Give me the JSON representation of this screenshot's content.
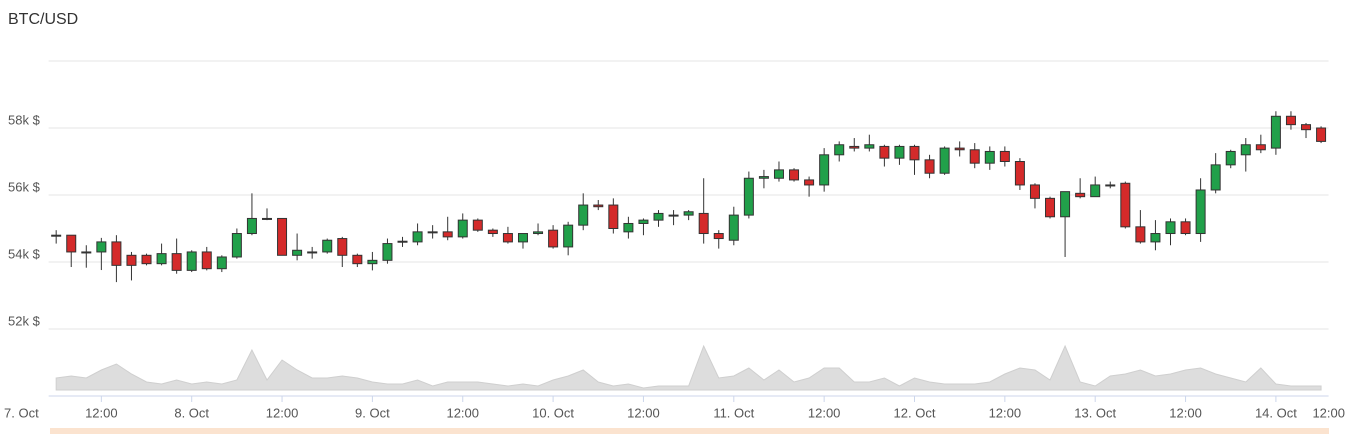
{
  "chart_data": {
    "type": "candlestick",
    "title": "BTC/USD",
    "x": [
      6,
      8,
      10,
      12,
      14,
      16,
      18,
      20,
      22,
      24,
      26,
      28,
      30,
      32,
      34,
      36,
      38,
      40,
      42,
      44,
      46,
      48,
      50,
      52,
      54,
      56,
      58,
      60,
      62,
      64,
      66,
      68,
      70,
      72,
      74,
      76,
      78,
      80,
      82,
      84,
      86,
      88,
      90,
      92,
      94,
      96,
      98,
      100,
      102,
      104,
      106,
      108,
      110,
      112,
      114,
      116,
      118,
      120,
      122,
      124,
      126,
      128,
      130,
      132,
      134,
      136,
      138,
      140,
      142,
      144,
      146,
      148,
      150,
      152,
      154,
      156,
      158,
      160,
      162,
      164,
      166,
      168,
      170,
      172,
      174
    ],
    "open": [
      54780,
      54800,
      54300,
      54300,
      54600,
      54200,
      54200,
      53950,
      54250,
      53750,
      54300,
      53800,
      54150,
      54850,
      55300,
      55300,
      54200,
      54300,
      54300,
      54700,
      54200,
      53950,
      54050,
      54600,
      54600,
      54900,
      54900,
      54750,
      55250,
      54950,
      54850,
      54600,
      54850,
      54950,
      54450,
      55100,
      55700,
      55700,
      54900,
      55150,
      55250,
      55400,
      55400,
      55450,
      54850,
      54650,
      55400,
      56500,
      56500,
      56750,
      56450,
      56300,
      57200,
      57450,
      57400,
      57450,
      57100,
      57450,
      57050,
      56650,
      57400,
      57350,
      56950,
      57300,
      57000,
      56300,
      55900,
      55350,
      56050,
      55950,
      56300,
      56350,
      55050,
      54600,
      54850,
      55200,
      54850,
      56150,
      56900,
      57200,
      57500,
      57400,
      58350,
      58100,
      58000
    ],
    "high": [
      54950,
      54800,
      54500,
      54720,
      54800,
      54300,
      54250,
      54550,
      54700,
      54350,
      54450,
      54200,
      55000,
      56050,
      55600,
      55300,
      54850,
      54450,
      54700,
      54750,
      54250,
      54300,
      54700,
      54750,
      55150,
      55100,
      55350,
      55450,
      55300,
      55000,
      55050,
      54850,
      55150,
      55100,
      55200,
      56050,
      55850,
      55900,
      55350,
      55300,
      55550,
      55550,
      55550,
      56500,
      54950,
      55650,
      56700,
      56750,
      57000,
      56800,
      56550,
      57400,
      57600,
      57700,
      57800,
      57500,
      57500,
      57500,
      57200,
      57450,
      57600,
      57550,
      57450,
      57450,
      57100,
      56350,
      55950,
      56100,
      56500,
      56550,
      56400,
      56400,
      55550,
      55250,
      55300,
      55300,
      56500,
      57250,
      57350,
      57700,
      57800,
      58500,
      58500,
      58150,
      58050
    ],
    "low": [
      54550,
      53850,
      53830,
      53760,
      53400,
      53450,
      53900,
      53900,
      53650,
      53700,
      53750,
      53700,
      54100,
      54800,
      55250,
      54200,
      54050,
      54100,
      54250,
      53850,
      53850,
      53750,
      53950,
      54450,
      54500,
      54700,
      54650,
      54700,
      54900,
      54750,
      54550,
      54400,
      54800,
      54400,
      54200,
      54950,
      55550,
      54850,
      54700,
      54800,
      55050,
      55100,
      55250,
      54550,
      54400,
      54500,
      55300,
      56200,
      56400,
      56400,
      55950,
      56100,
      57000,
      57300,
      57300,
      56850,
      56900,
      56600,
      56500,
      56600,
      57150,
      56800,
      56750,
      56850,
      56150,
      55600,
      55300,
      54150,
      55900,
      55950,
      56200,
      55000,
      54550,
      54350,
      54500,
      54800,
      54600,
      56050,
      56800,
      56700,
      57250,
      57200,
      57950,
      57700,
      57550
    ],
    "close": [
      54800,
      54300,
      54300,
      54600,
      53900,
      53900,
      53950,
      54250,
      53750,
      54300,
      53800,
      54150,
      54850,
      55300,
      55300,
      54200,
      54350,
      54300,
      54650,
      54200,
      53950,
      54050,
      54550,
      54620,
      54900,
      54900,
      54750,
      55250,
      54950,
      54850,
      54600,
      54850,
      54900,
      54450,
      55100,
      55700,
      55650,
      55000,
      55150,
      55250,
      55450,
      55400,
      55500,
      54850,
      54700,
      55400,
      56500,
      56550,
      56750,
      56450,
      56300,
      57200,
      57500,
      57400,
      57500,
      57100,
      57450,
      57050,
      56650,
      57400,
      57350,
      56950,
      57300,
      57000,
      56300,
      55900,
      55350,
      56100,
      55950,
      56300,
      56300,
      55050,
      54600,
      54850,
      55200,
      54850,
      56150,
      56900,
      57300,
      57500,
      57350,
      58350,
      58100,
      57950,
      57600
    ],
    "up_color": "#21a04a",
    "down_color": "#d42a2a",
    "volume": {
      "color": "#dddddd",
      "ylim": [
        0,
        50
      ],
      "values": [
        12,
        14,
        12,
        20,
        26,
        16,
        8,
        6,
        10,
        6,
        8,
        6,
        10,
        40,
        10,
        30,
        20,
        12,
        12,
        14,
        12,
        8,
        6,
        6,
        10,
        4,
        8,
        8,
        8,
        6,
        4,
        6,
        4,
        10,
        14,
        20,
        8,
        4,
        6,
        2,
        4,
        4,
        4,
        44,
        12,
        14,
        22,
        10,
        20,
        8,
        12,
        22,
        22,
        8,
        8,
        12,
        4,
        12,
        8,
        6,
        6,
        6,
        8,
        16,
        22,
        20,
        10,
        44,
        8,
        4,
        14,
        16,
        20,
        14,
        16,
        20,
        22,
        16,
        12,
        8,
        22,
        6,
        4,
        4,
        4
      ]
    },
    "xlim": [
      5,
      175
    ],
    "xticks": [
      {
        "value": 0,
        "label": "7. Oct"
      },
      {
        "value": 12,
        "label": "12:00"
      },
      {
        "value": 24,
        "label": "8. Oct"
      },
      {
        "value": 36,
        "label": "12:00"
      },
      {
        "value": 48,
        "label": "9. Oct"
      },
      {
        "value": 60,
        "label": "12:00"
      },
      {
        "value": 72,
        "label": "10. Oct"
      },
      {
        "value": 84,
        "label": "12:00"
      },
      {
        "value": 96,
        "label": "11. Oct"
      },
      {
        "value": 108,
        "label": "12:00"
      },
      {
        "value": 120,
        "label": "12. Oct"
      },
      {
        "value": 132,
        "label": "12:00"
      },
      {
        "value": 144,
        "label": "13. Oct"
      },
      {
        "value": 156,
        "label": "12:00"
      },
      {
        "value": 168,
        "label": "14. Oct"
      },
      {
        "value": 180,
        "label": "12:00"
      }
    ],
    "ylim": [
      52000,
      60000
    ],
    "yticks": [
      {
        "value": 52000,
        "label": "52k $"
      },
      {
        "value": 54000,
        "label": "54k $"
      },
      {
        "value": 56000,
        "label": "56k $"
      },
      {
        "value": 58000,
        "label": "58k $"
      }
    ],
    "grid": true
  }
}
